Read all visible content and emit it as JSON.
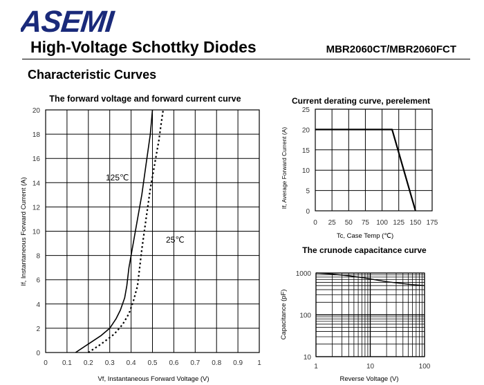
{
  "header": {
    "logo_text": "ASEMI",
    "title": "High-Voltage Schottky Diodes",
    "part_number": "MBR2060CT/MBR2060FCT",
    "section_title": "Characteristic Curves",
    "logo_color": "#1a2a7a"
  },
  "chart_data": [
    {
      "type": "line",
      "title": "The forward voltage and forward current curve",
      "xlabel": "Vf, Instantaneous Forward Voltage (V)",
      "ylabel": "If, Instantaneous Forward Current (A)",
      "xlim": [
        0,
        1
      ],
      "ylim": [
        0,
        20
      ],
      "x_ticks": [
        "0",
        "0.1",
        "0.2",
        "0.3",
        "0.4",
        "0.5",
        "0.6",
        "0.7",
        "0.8",
        "0.9",
        "1"
      ],
      "y_ticks": [
        "0",
        "2",
        "4",
        "6",
        "8",
        "10",
        "12",
        "14",
        "16",
        "18",
        "20"
      ],
      "grid": true,
      "series": [
        {
          "name": "125℃",
          "style": "solid",
          "x": [
            0.14,
            0.2,
            0.26,
            0.3,
            0.33,
            0.35,
            0.37,
            0.38,
            0.39,
            0.41,
            0.43,
            0.45,
            0.47,
            0.49,
            0.5
          ],
          "y": [
            0,
            0.7,
            1.4,
            2.0,
            2.8,
            3.5,
            4.5,
            5.5,
            7.0,
            9.0,
            11.0,
            13.0,
            15.5,
            18.0,
            20.0
          ]
        },
        {
          "name": "25℃",
          "style": "dotted",
          "x": [
            0.2,
            0.26,
            0.32,
            0.36,
            0.39,
            0.41,
            0.43,
            0.44,
            0.45,
            0.47,
            0.49,
            0.51,
            0.53,
            0.54,
            0.55
          ],
          "y": [
            0,
            0.7,
            1.5,
            2.3,
            3.2,
            4.2,
            5.5,
            7.0,
            8.5,
            11.0,
            13.5,
            15.5,
            17.5,
            18.8,
            20.0
          ]
        }
      ]
    },
    {
      "type": "line",
      "title": "Current derating curve, perelement",
      "xlabel": "Tc, Case Temp (℃)",
      "ylabel": "If, Average Forward Current (A)",
      "xlim": [
        0,
        175
      ],
      "ylim": [
        0,
        25
      ],
      "x_ticks": [
        "0",
        "25",
        "50",
        "75",
        "100",
        "125",
        "150",
        "175"
      ],
      "y_ticks": [
        "0",
        "5",
        "10",
        "15",
        "20",
        "25"
      ],
      "grid": true,
      "series": [
        {
          "x": [
            0,
            115,
            150
          ],
          "y": [
            20,
            20,
            0
          ]
        }
      ]
    },
    {
      "type": "line",
      "title": "The crunode capacitance curve",
      "xlabel": "Reverse Voltage (V)",
      "ylabel": "Capacitance (pF)",
      "xscale": "log",
      "yscale": "log",
      "xlim": [
        1,
        100
      ],
      "ylim": [
        10,
        1000
      ],
      "x_ticks": [
        "1",
        "10",
        "100"
      ],
      "y_ticks": [
        "10",
        "100",
        "1000"
      ],
      "grid": true,
      "series": [
        {
          "x": [
            1,
            2,
            4,
            8,
            10,
            20,
            50,
            100
          ],
          "y": [
            1000,
            940,
            860,
            760,
            720,
            620,
            540,
            500
          ]
        }
      ]
    }
  ]
}
